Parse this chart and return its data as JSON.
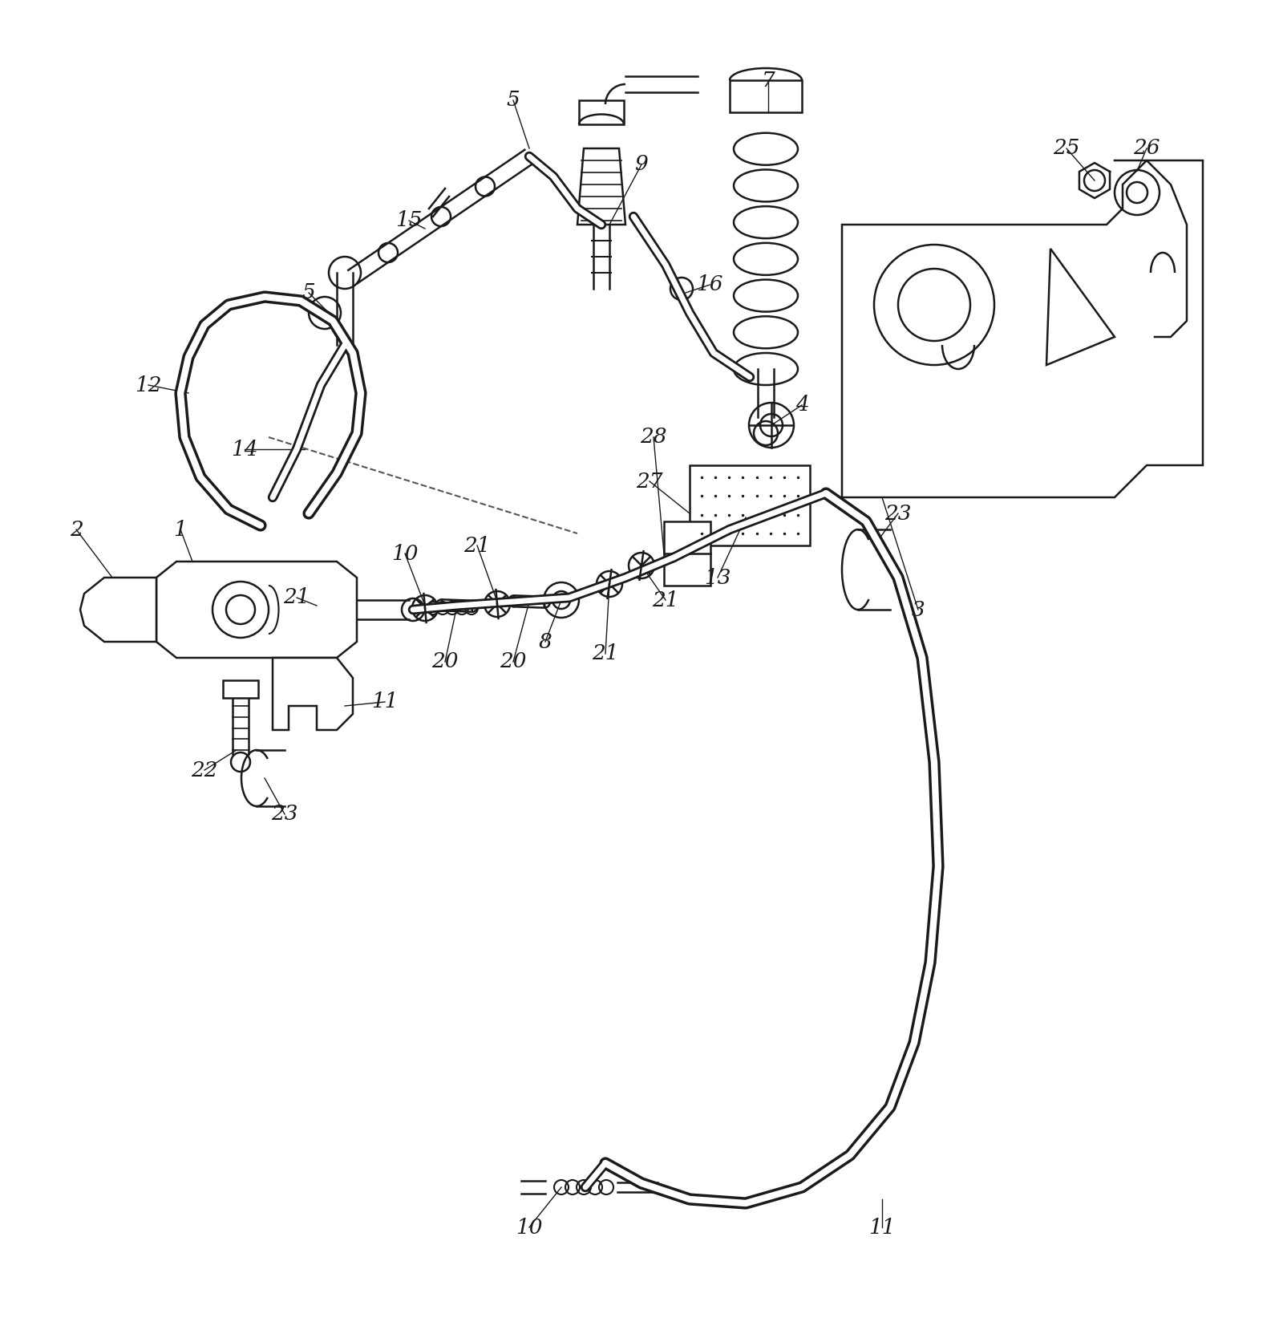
{
  "background_color": "#ffffff",
  "line_color": "#1a1a1a",
  "text_color": "#1a1a1a",
  "figsize": [
    16.0,
    16.53
  ],
  "dpi": 100,
  "xlim": [
    0,
    1600
  ],
  "ylim": [
    0,
    1653
  ]
}
